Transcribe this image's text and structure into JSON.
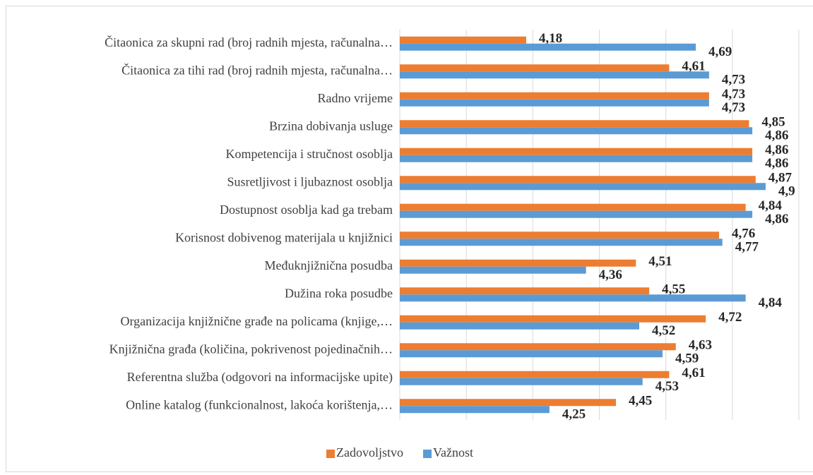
{
  "chart_data": {
    "type": "hbar",
    "categories": [
      "Čitaonica za skupni rad (broj radnih mjesta, računalna…",
      "Čitaonica za tihi rad (broj radnih mjesta, računalna…",
      "Radno vrijeme",
      "Brzina dobivanja usluge",
      "Kompetencija i stručnost osoblja",
      "Susretljivost i ljubaznost osoblja",
      "Dostupnost osoblja kad ga trebam",
      "Korisnost dobivenog materijala u knjižnici",
      "Međuknjižnična posudba",
      "Dužina roka posudbe",
      "Organizacija knjižnične građe na policama (knjige,…",
      "Knjižnična građa (količina, pokrivenost pojedinačnih…",
      "Referentna služba (odgovori na informacijske upite)",
      "Online katalog (funkcionalnost, lakoća korištenja,…"
    ],
    "series": [
      {
        "name": "Zadovoljstvo",
        "color": "#ed7d31",
        "values": [
          4.18,
          4.61,
          4.73,
          4.85,
          4.86,
          4.87,
          4.84,
          4.76,
          4.51,
          4.55,
          4.72,
          4.63,
          4.61,
          4.45
        ],
        "value_labels": [
          "4,18",
          "4,61",
          "4,73",
          "4,85",
          "4,86",
          "4,87",
          "4,84",
          "4,76",
          "4,51",
          "4,55",
          "4,72",
          "4,63",
          "4,61",
          "4,45"
        ]
      },
      {
        "name": "Važnost",
        "color": "#5b9bd5",
        "values": [
          4.69,
          4.73,
          4.73,
          4.86,
          4.86,
          4.9,
          4.86,
          4.77,
          4.36,
          4.84,
          4.52,
          4.59,
          4.53,
          4.25
        ],
        "value_labels": [
          "4,69",
          "4,73",
          "4,73",
          "4,86",
          "4,86",
          "4,9",
          "4,86",
          "4,77",
          "4,36",
          "4,84",
          "4,52",
          "4,59",
          "4,53",
          "4,25"
        ]
      }
    ],
    "xlim": [
      3.8,
      5.0
    ],
    "xticks": [
      3.8,
      4.0,
      4.2,
      4.4,
      4.6,
      4.8,
      5.0
    ],
    "xtick_labels": false,
    "grid": true,
    "legend": "bottom"
  }
}
